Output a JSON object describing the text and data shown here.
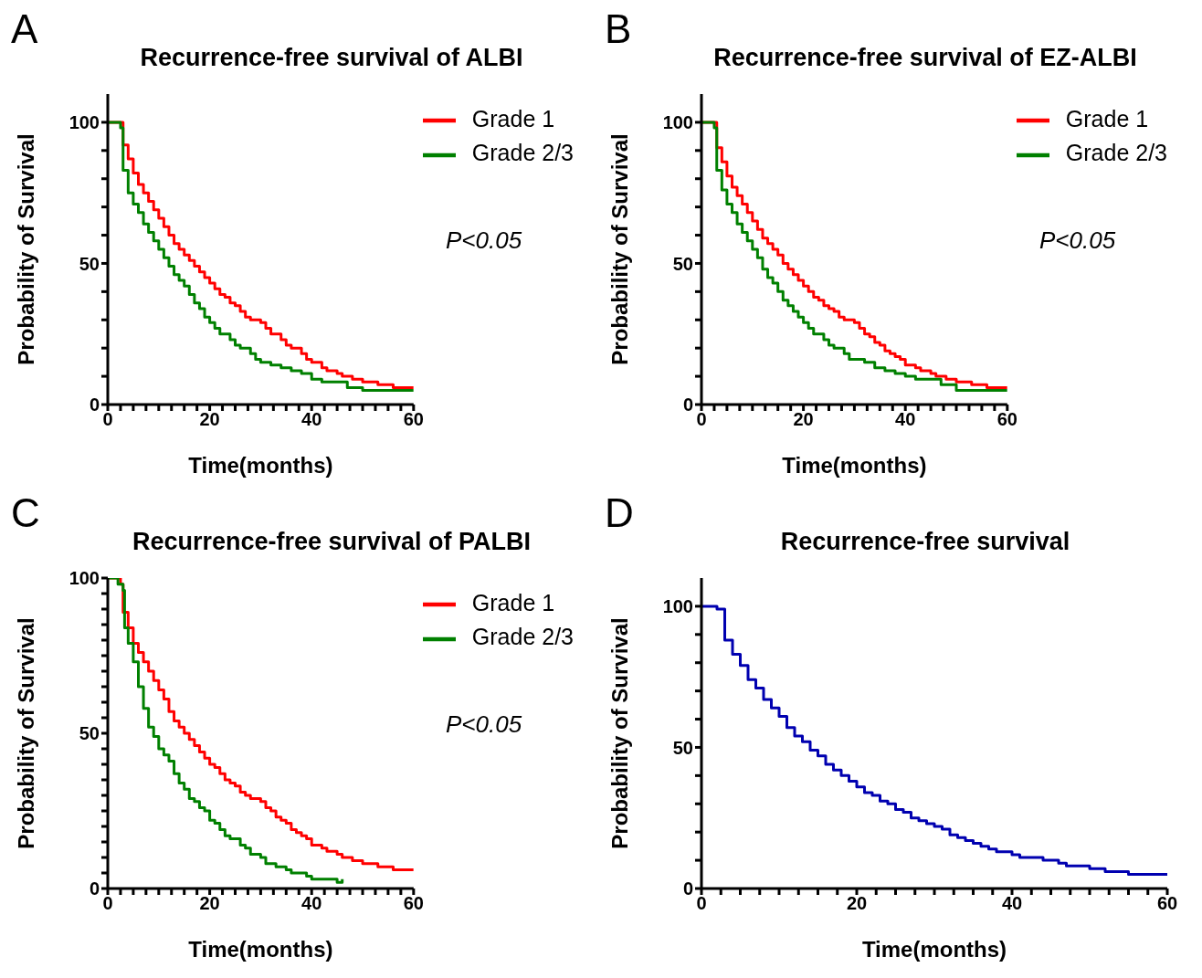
{
  "chart_data": [
    {
      "type": "step",
      "title": "Recurrence-free survival of ALBI",
      "xlabel": "Time(months)",
      "ylabel": "Probability of Survival",
      "annotations": [
        "A",
        "P<0.05"
      ],
      "legend": "top right",
      "xlim": [
        0,
        60
      ],
      "xticks": [
        0,
        {
          "value": 2.5,
          "label": null
        },
        {
          "value": 5,
          "label": null
        },
        {
          "value": 7.5,
          "label": null
        },
        {
          "value": 10,
          "label": null
        },
        {
          "value": 12.5,
          "label": null
        },
        {
          "value": 15,
          "label": null
        },
        {
          "value": 17.5,
          "label": null
        },
        20,
        {
          "value": 22.5,
          "label": null
        },
        {
          "value": 25,
          "label": null
        },
        {
          "value": 27.5,
          "label": null
        },
        {
          "value": 30,
          "label": null
        },
        {
          "value": 32.5,
          "label": null
        },
        {
          "value": 35,
          "label": null
        },
        {
          "value": 37.5,
          "label": null
        },
        40,
        {
          "value": 42.5,
          "label": null
        },
        {
          "value": 45,
          "label": null
        },
        {
          "value": 47.5,
          "label": null
        },
        {
          "value": 50,
          "label": null
        },
        {
          "value": 52.5,
          "label": null
        },
        {
          "value": 55,
          "label": null
        },
        {
          "value": 57.5,
          "label": null
        },
        60
      ],
      "ylim": [
        0,
        110
      ],
      "yticks": [
        0,
        {
          "value": 10,
          "label": null
        },
        {
          "value": 20,
          "label": null
        },
        {
          "value": 30,
          "label": null
        },
        {
          "value": 40,
          "label": null
        },
        50,
        {
          "value": 60,
          "label": null
        },
        {
          "value": 70,
          "label": null
        },
        {
          "value": 80,
          "label": null
        },
        {
          "value": 90,
          "label": null
        },
        100
      ],
      "series": [
        {
          "name": "Grade 1",
          "color": "#ff0000",
          "x": [
            0,
            2.5,
            3,
            4,
            5,
            6,
            7,
            8,
            9,
            10,
            11,
            12,
            13,
            14,
            15,
            16,
            17,
            18,
            19,
            20,
            21,
            22,
            23,
            24,
            25,
            26,
            27,
            28,
            30,
            31,
            32,
            34,
            35,
            36,
            38,
            39,
            40,
            42,
            43,
            45,
            46,
            48,
            50,
            53,
            56,
            60
          ],
          "values": [
            100,
            100,
            92,
            87,
            82,
            78,
            75,
            72,
            69,
            66,
            63,
            60,
            57,
            55,
            53,
            51,
            49,
            47,
            45,
            43,
            41,
            39,
            38,
            36,
            35,
            33,
            31,
            30,
            29,
            27,
            25,
            23,
            21,
            20,
            18,
            16,
            15,
            13,
            12,
            11,
            10,
            9,
            8,
            7,
            6,
            6
          ]
        },
        {
          "name": "Grade 2/3",
          "color": "#008000",
          "x": [
            0,
            2.5,
            3,
            4,
            5,
            6,
            7,
            8,
            9,
            10,
            11,
            12,
            13,
            14,
            15,
            16,
            17,
            18,
            19,
            20,
            21,
            22,
            24,
            25,
            26,
            28,
            29,
            30,
            32,
            34,
            36,
            38,
            40,
            42,
            46,
            47,
            50,
            60
          ],
          "values": [
            100,
            98,
            83,
            75,
            71,
            68,
            64,
            61,
            58,
            55,
            52,
            49,
            46,
            44,
            42,
            39,
            36,
            34,
            31,
            29,
            27,
            25,
            23,
            21,
            20,
            18,
            16,
            15,
            14,
            13,
            12,
            11,
            9,
            8,
            8,
            6,
            5,
            5
          ]
        }
      ]
    },
    {
      "type": "step",
      "title": "Recurrence-free survival of EZ-ALBI",
      "xlabel": "Time(months)",
      "ylabel": "Probability of Survival",
      "annotations": [
        "B",
        "P<0.05"
      ],
      "legend": "top right",
      "xlim": [
        0,
        60
      ],
      "xticks": [
        0,
        {
          "value": 2.5,
          "label": null
        },
        {
          "value": 5,
          "label": null
        },
        {
          "value": 7.5,
          "label": null
        },
        {
          "value": 10,
          "label": null
        },
        {
          "value": 12.5,
          "label": null
        },
        {
          "value": 15,
          "label": null
        },
        {
          "value": 17.5,
          "label": null
        },
        20,
        {
          "value": 22.5,
          "label": null
        },
        {
          "value": 25,
          "label": null
        },
        {
          "value": 27.5,
          "label": null
        },
        {
          "value": 30,
          "label": null
        },
        {
          "value": 32.5,
          "label": null
        },
        {
          "value": 35,
          "label": null
        },
        {
          "value": 37.5,
          "label": null
        },
        40,
        {
          "value": 42.5,
          "label": null
        },
        {
          "value": 45,
          "label": null
        },
        {
          "value": 47.5,
          "label": null
        },
        {
          "value": 50,
          "label": null
        },
        {
          "value": 52.5,
          "label": null
        },
        {
          "value": 55,
          "label": null
        },
        {
          "value": 57.5,
          "label": null
        },
        60
      ],
      "ylim": [
        0,
        110
      ],
      "yticks": [
        0,
        {
          "value": 10,
          "label": null
        },
        {
          "value": 20,
          "label": null
        },
        {
          "value": 30,
          "label": null
        },
        {
          "value": 40,
          "label": null
        },
        50,
        {
          "value": 60,
          "label": null
        },
        {
          "value": 70,
          "label": null
        },
        {
          "value": 80,
          "label": null
        },
        {
          "value": 90,
          "label": null
        },
        100
      ],
      "series": [
        {
          "name": "Grade 1",
          "color": "#ff0000",
          "x": [
            0,
            2.5,
            3,
            4,
            5,
            6,
            7,
            8,
            9,
            10,
            11,
            12,
            13,
            14,
            15,
            16,
            17,
            18,
            19,
            20,
            21,
            22,
            23,
            24,
            25,
            26,
            27,
            28,
            30,
            31,
            32,
            33,
            34,
            35,
            36,
            37,
            38,
            39,
            40,
            42,
            43,
            45,
            46,
            48,
            50,
            53,
            56,
            60
          ],
          "values": [
            100,
            100,
            91,
            86,
            81,
            77,
            74,
            71,
            68,
            65,
            62,
            59,
            57,
            55,
            53,
            50,
            48,
            46,
            44,
            42,
            40,
            38,
            37,
            35,
            34,
            33,
            31,
            30,
            29,
            27,
            25,
            24,
            22,
            21,
            19,
            18,
            17,
            16,
            14,
            13,
            12,
            11,
            10,
            9,
            8,
            7,
            6,
            6
          ]
        },
        {
          "name": "Grade 2/3",
          "color": "#008000",
          "x": [
            0,
            2.5,
            3,
            4,
            5,
            6,
            7,
            8,
            9,
            10,
            11,
            12,
            13,
            14,
            15,
            16,
            17,
            18,
            19,
            20,
            21,
            22,
            24,
            25,
            26,
            28,
            29,
            30,
            32,
            34,
            36,
            38,
            40,
            42,
            46,
            47,
            50,
            60
          ],
          "values": [
            100,
            98,
            83,
            76,
            71,
            68,
            64,
            61,
            58,
            55,
            52,
            48,
            45,
            43,
            40,
            37,
            35,
            33,
            31,
            29,
            27,
            25,
            23,
            21,
            20,
            18,
            16,
            16,
            15,
            13,
            12,
            11,
            10,
            9,
            9,
            7,
            5,
            5
          ]
        }
      ]
    },
    {
      "type": "step",
      "title": "Recurrence-free survival of PALBI",
      "xlabel": "Time(months)",
      "ylabel": "Probability of Survival",
      "annotations": [
        "C",
        "P<0.05"
      ],
      "legend": "top right",
      "xlim": [
        0,
        60
      ],
      "xticks": [
        0,
        {
          "value": 2.5,
          "label": null
        },
        {
          "value": 5,
          "label": null
        },
        {
          "value": 7.5,
          "label": null
        },
        {
          "value": 10,
          "label": null
        },
        {
          "value": 12.5,
          "label": null
        },
        {
          "value": 15,
          "label": null
        },
        {
          "value": 17.5,
          "label": null
        },
        20,
        {
          "value": 22.5,
          "label": null
        },
        {
          "value": 25,
          "label": null
        },
        {
          "value": 27.5,
          "label": null
        },
        {
          "value": 30,
          "label": null
        },
        {
          "value": 32.5,
          "label": null
        },
        {
          "value": 35,
          "label": null
        },
        {
          "value": 37.5,
          "label": null
        },
        40,
        {
          "value": 42.5,
          "label": null
        },
        {
          "value": 45,
          "label": null
        },
        {
          "value": 47.5,
          "label": null
        },
        {
          "value": 50,
          "label": null
        },
        {
          "value": 52.5,
          "label": null
        },
        {
          "value": 55,
          "label": null
        },
        {
          "value": 57.5,
          "label": null
        },
        60
      ],
      "ylim": [
        0,
        100
      ],
      "yticks": [
        0,
        {
          "value": 5,
          "label": null
        },
        {
          "value": 10,
          "label": null
        },
        {
          "value": 15,
          "label": null
        },
        {
          "value": 20,
          "label": null
        },
        {
          "value": 25,
          "label": null
        },
        {
          "value": 30,
          "label": null
        },
        {
          "value": 35,
          "label": null
        },
        {
          "value": 40,
          "label": null
        },
        {
          "value": 45,
          "label": null
        },
        50,
        {
          "value": 55,
          "label": null
        },
        {
          "value": 60,
          "label": null
        },
        {
          "value": 65,
          "label": null
        },
        {
          "value": 70,
          "label": null
        },
        {
          "value": 75,
          "label": null
        },
        {
          "value": 80,
          "label": null
        },
        {
          "value": 85,
          "label": null
        },
        {
          "value": 90,
          "label": null
        },
        {
          "value": 95,
          "label": null
        },
        100
      ],
      "series": [
        {
          "name": "Grade 1",
          "color": "#ff0000",
          "x": [
            0,
            2.5,
            3,
            4,
            5,
            6,
            7,
            8,
            9,
            10,
            11,
            12,
            13,
            14,
            15,
            16,
            17,
            18,
            19,
            20,
            21,
            22,
            23,
            24,
            25,
            26,
            27,
            28,
            30,
            31,
            32,
            33,
            34,
            35,
            36,
            37,
            38,
            39,
            40,
            42,
            43,
            45,
            46,
            48,
            50,
            53,
            56,
            60
          ],
          "values": [
            100,
            98,
            89,
            84,
            79,
            76,
            73,
            70,
            67,
            64,
            61,
            57,
            54,
            52,
            50,
            48,
            46,
            44,
            42,
            40,
            39,
            37,
            35,
            34,
            33,
            31,
            30,
            29,
            28,
            26,
            25,
            23,
            22,
            21,
            19,
            18,
            17,
            16,
            14,
            13,
            12,
            11,
            10,
            9,
            8,
            7,
            6,
            6
          ]
        },
        {
          "name": "Grade 2/3",
          "color": "#008000",
          "x": [
            0,
            2,
            3,
            3.3,
            4,
            5,
            6,
            7,
            8,
            9,
            10,
            11,
            12,
            13,
            14,
            15,
            16,
            17,
            18,
            19,
            20,
            21,
            22,
            23,
            24,
            26,
            27,
            28,
            30,
            31,
            33,
            35,
            36,
            39,
            40,
            45,
            46
          ],
          "values": [
            100,
            98,
            96,
            84,
            79,
            73,
            65,
            58,
            52,
            49,
            45,
            43,
            41,
            37,
            34,
            32,
            29,
            28,
            26,
            25,
            22,
            21,
            19,
            17,
            16,
            14,
            13,
            11,
            10,
            8,
            7,
            6,
            5,
            4,
            3,
            2,
            3
          ]
        }
      ]
    },
    {
      "type": "step",
      "title": "Recurrence-free survival",
      "xlabel": "Time(months)",
      "ylabel": "Probability of Survival",
      "annotations": [
        "D"
      ],
      "xlim": [
        0,
        60
      ],
      "xticks": [
        0,
        {
          "value": 2.5,
          "label": null
        },
        {
          "value": 5,
          "label": null
        },
        {
          "value": 7.5,
          "label": null
        },
        {
          "value": 10,
          "label": null
        },
        {
          "value": 12.5,
          "label": null
        },
        {
          "value": 15,
          "label": null
        },
        {
          "value": 17.5,
          "label": null
        },
        20,
        {
          "value": 22.5,
          "label": null
        },
        {
          "value": 25,
          "label": null
        },
        {
          "value": 27.5,
          "label": null
        },
        {
          "value": 30,
          "label": null
        },
        {
          "value": 32.5,
          "label": null
        },
        {
          "value": 35,
          "label": null
        },
        {
          "value": 37.5,
          "label": null
        },
        40,
        {
          "value": 42.5,
          "label": null
        },
        {
          "value": 45,
          "label": null
        },
        {
          "value": 47.5,
          "label": null
        },
        {
          "value": 50,
          "label": null
        },
        {
          "value": 52.5,
          "label": null
        },
        {
          "value": 55,
          "label": null
        },
        {
          "value": 57.5,
          "label": null
        },
        60
      ],
      "ylim": [
        0,
        110
      ],
      "yticks": [
        0,
        {
          "value": 10,
          "label": null
        },
        {
          "value": 20,
          "label": null
        },
        {
          "value": 30,
          "label": null
        },
        {
          "value": 40,
          "label": null
        },
        50,
        {
          "value": 60,
          "label": null
        },
        {
          "value": 70,
          "label": null
        },
        {
          "value": 80,
          "label": null
        },
        {
          "value": 90,
          "label": null
        },
        100
      ],
      "series": [
        {
          "color": "#0000b0",
          "x": [
            0,
            2,
            3,
            4,
            5,
            6,
            7,
            8,
            9,
            10,
            11,
            12,
            13,
            14,
            15,
            16,
            17,
            18,
            19,
            20,
            21,
            22,
            23,
            24,
            25,
            26,
            27,
            28,
            29,
            30,
            31,
            32,
            33,
            34,
            35,
            36,
            37,
            38,
            40,
            41,
            44,
            46,
            47,
            50,
            52,
            55,
            60
          ],
          "values": [
            100,
            99,
            88,
            83,
            79,
            74,
            71,
            67,
            64,
            61,
            57,
            54,
            52,
            49,
            47,
            44,
            42,
            40,
            38,
            36,
            34,
            33,
            31,
            30,
            28,
            27,
            25,
            24,
            23,
            22,
            21,
            19,
            18,
            17,
            16,
            15,
            14,
            13,
            12,
            11,
            10,
            9,
            8,
            7,
            6,
            5,
            5
          ]
        }
      ]
    }
  ]
}
